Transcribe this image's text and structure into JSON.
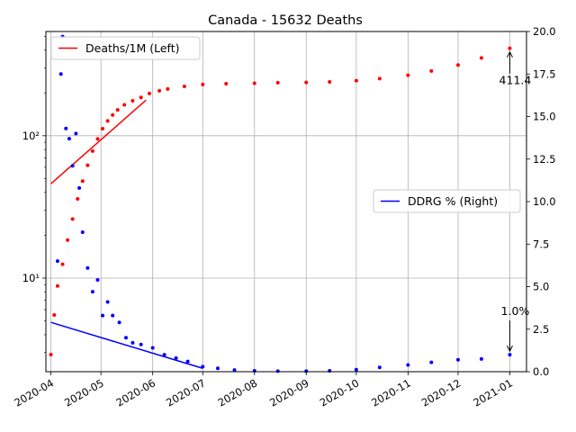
{
  "chart_data": {
    "type": "line",
    "title": "Canada - 15632 Deaths",
    "xlabel": "",
    "ylabel_left": "",
    "ylabel_right": "",
    "grid": true,
    "left_axis": {
      "scale": "log",
      "ylim": [
        2.2,
        540
      ],
      "major_ticks": [
        10,
        100
      ],
      "tick_labels": [
        "10¹",
        "10²"
      ]
    },
    "right_axis": {
      "scale": "linear",
      "ylim": [
        0,
        20
      ],
      "ticks": [
        0.0,
        2.5,
        5.0,
        7.5,
        10.0,
        12.5,
        15.0,
        17.5,
        20.0
      ],
      "tick_labels": [
        "0.0",
        "2.5",
        "5.0",
        "7.5",
        "10.0",
        "12.5",
        "15.0",
        "17.5",
        "20.0"
      ]
    },
    "x_axis": {
      "type": "date",
      "xlim": [
        "2020-03-29",
        "2021-01-11"
      ],
      "ticks": [
        "2020-04-01",
        "2020-05-01",
        "2020-06-01",
        "2020-07-01",
        "2020-08-01",
        "2020-09-01",
        "2020-10-01",
        "2020-11-01",
        "2020-12-01",
        "2021-01-01"
      ],
      "tick_labels": [
        "2020-04",
        "2020-05",
        "2020-06",
        "2020-07",
        "2020-08",
        "2020-09",
        "2020-10",
        "2020-11",
        "2020-12",
        "2021-01"
      ]
    },
    "legends": [
      {
        "placement": "upper-left",
        "label": "Deaths/1M (Left)",
        "color": "#ff0000"
      },
      {
        "placement": "center-right",
        "label": "DDRG % (Right)",
        "color": "#0000ff"
      }
    ],
    "series": [
      {
        "name": "Deaths/1M (Left)",
        "axis": "left",
        "color": "#ff0000",
        "style": "scatter+fit",
        "x": [
          "2020-04-01",
          "2020-04-03",
          "2020-04-05",
          "2020-04-08",
          "2020-04-11",
          "2020-04-14",
          "2020-04-17",
          "2020-04-20",
          "2020-04-23",
          "2020-04-26",
          "2020-04-29",
          "2020-05-02",
          "2020-05-05",
          "2020-05-08",
          "2020-05-11",
          "2020-05-15",
          "2020-05-20",
          "2020-05-25",
          "2020-05-30",
          "2020-06-05",
          "2020-06-10",
          "2020-06-20",
          "2020-07-01",
          "2020-07-15",
          "2020-08-01",
          "2020-08-15",
          "2020-09-01",
          "2020-09-15",
          "2020-10-01",
          "2020-10-15",
          "2020-11-01",
          "2020-11-15",
          "2020-12-01",
          "2020-12-15",
          "2021-01-01"
        ],
        "values": [
          2.9,
          5.5,
          8.8,
          12.5,
          18.5,
          26,
          36,
          48,
          62,
          78,
          95,
          112,
          127,
          140,
          152,
          165,
          176,
          186,
          198,
          207,
          213,
          222,
          229,
          232,
          234,
          236,
          237,
          239,
          244,
          252,
          266,
          285,
          314,
          352,
          411.4
        ],
        "fit": {
          "x": [
            "2020-04-01",
            "2020-05-28"
          ],
          "values": [
            46,
            178
          ]
        }
      },
      {
        "name": "DDRG % (Right)",
        "axis": "right",
        "color": "#0000ff",
        "style": "scatter+fit",
        "x": [
          "2020-04-05",
          "2020-04-07",
          "2020-04-08",
          "2020-04-10",
          "2020-04-12",
          "2020-04-14",
          "2020-04-16",
          "2020-04-18",
          "2020-04-20",
          "2020-04-23",
          "2020-04-26",
          "2020-04-29",
          "2020-05-02",
          "2020-05-05",
          "2020-05-08",
          "2020-05-12",
          "2020-05-16",
          "2020-05-20",
          "2020-05-25",
          "2020-06-01",
          "2020-06-08",
          "2020-06-15",
          "2020-06-22",
          "2020-07-01",
          "2020-07-10",
          "2020-07-20",
          "2020-08-01",
          "2020-08-15",
          "2020-09-01",
          "2020-09-15",
          "2020-10-01",
          "2020-10-15",
          "2020-11-01",
          "2020-11-15",
          "2020-12-01",
          "2020-12-15",
          "2021-01-01"
        ],
        "values": [
          6.5,
          17.5,
          19.7,
          14.3,
          13.7,
          12.1,
          14.0,
          10.8,
          8.2,
          6.1,
          4.7,
          5.4,
          3.3,
          4.1,
          3.3,
          2.9,
          2.0,
          1.7,
          1.6,
          1.4,
          1.0,
          0.8,
          0.6,
          0.3,
          0.2,
          0.1,
          0.05,
          0.03,
          0.03,
          0.05,
          0.12,
          0.25,
          0.4,
          0.55,
          0.7,
          0.75,
          1.0
        ],
        "fit": {
          "x": [
            "2020-04-01",
            "2020-07-01"
          ],
          "values": [
            2.9,
            0.2
          ]
        }
      }
    ],
    "annotations": [
      {
        "text": "411.4",
        "target_series": "Deaths/1M (Left)",
        "x": "2021-01-01",
        "y": 411.4
      },
      {
        "text": "1.0%",
        "target_series": "DDRG % (Right)",
        "x": "2021-01-01",
        "y": 1.0
      }
    ]
  }
}
